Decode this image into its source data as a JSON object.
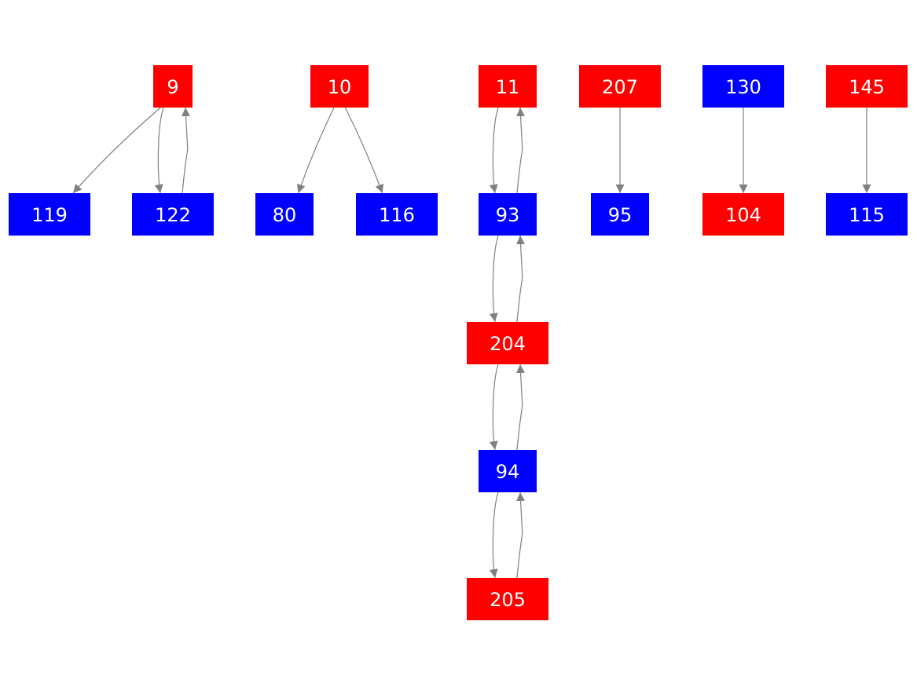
{
  "colors": {
    "red": "#ff0000",
    "blue": "#0000ff",
    "edge": "#808080",
    "label": "#ffffff"
  },
  "nodes": [
    {
      "id": "9",
      "label": "9",
      "color": "red"
    },
    {
      "id": "10",
      "label": "10",
      "color": "red"
    },
    {
      "id": "11",
      "label": "11",
      "color": "red"
    },
    {
      "id": "207",
      "label": "207",
      "color": "red"
    },
    {
      "id": "130",
      "label": "130",
      "color": "blue"
    },
    {
      "id": "145",
      "label": "145",
      "color": "red"
    },
    {
      "id": "119",
      "label": "119",
      "color": "blue"
    },
    {
      "id": "122",
      "label": "122",
      "color": "blue"
    },
    {
      "id": "80",
      "label": "80",
      "color": "blue"
    },
    {
      "id": "116",
      "label": "116",
      "color": "blue"
    },
    {
      "id": "93",
      "label": "93",
      "color": "blue"
    },
    {
      "id": "95",
      "label": "95",
      "color": "blue"
    },
    {
      "id": "104",
      "label": "104",
      "color": "red"
    },
    {
      "id": "115",
      "label": "115",
      "color": "blue"
    },
    {
      "id": "204",
      "label": "204",
      "color": "red"
    },
    {
      "id": "94",
      "label": "94",
      "color": "blue"
    },
    {
      "id": "205",
      "label": "205",
      "color": "red"
    }
  ],
  "edges": [
    {
      "from": "9",
      "to": "119"
    },
    {
      "from": "9",
      "to": "122"
    },
    {
      "from": "122",
      "to": "9"
    },
    {
      "from": "10",
      "to": "80"
    },
    {
      "from": "10",
      "to": "116"
    },
    {
      "from": "11",
      "to": "93"
    },
    {
      "from": "93",
      "to": "11"
    },
    {
      "from": "207",
      "to": "95"
    },
    {
      "from": "130",
      "to": "104"
    },
    {
      "from": "145",
      "to": "115"
    },
    {
      "from": "93",
      "to": "204"
    },
    {
      "from": "204",
      "to": "93"
    },
    {
      "from": "204",
      "to": "94"
    },
    {
      "from": "94",
      "to": "204"
    },
    {
      "from": "94",
      "to": "205"
    },
    {
      "from": "205",
      "to": "94"
    }
  ]
}
